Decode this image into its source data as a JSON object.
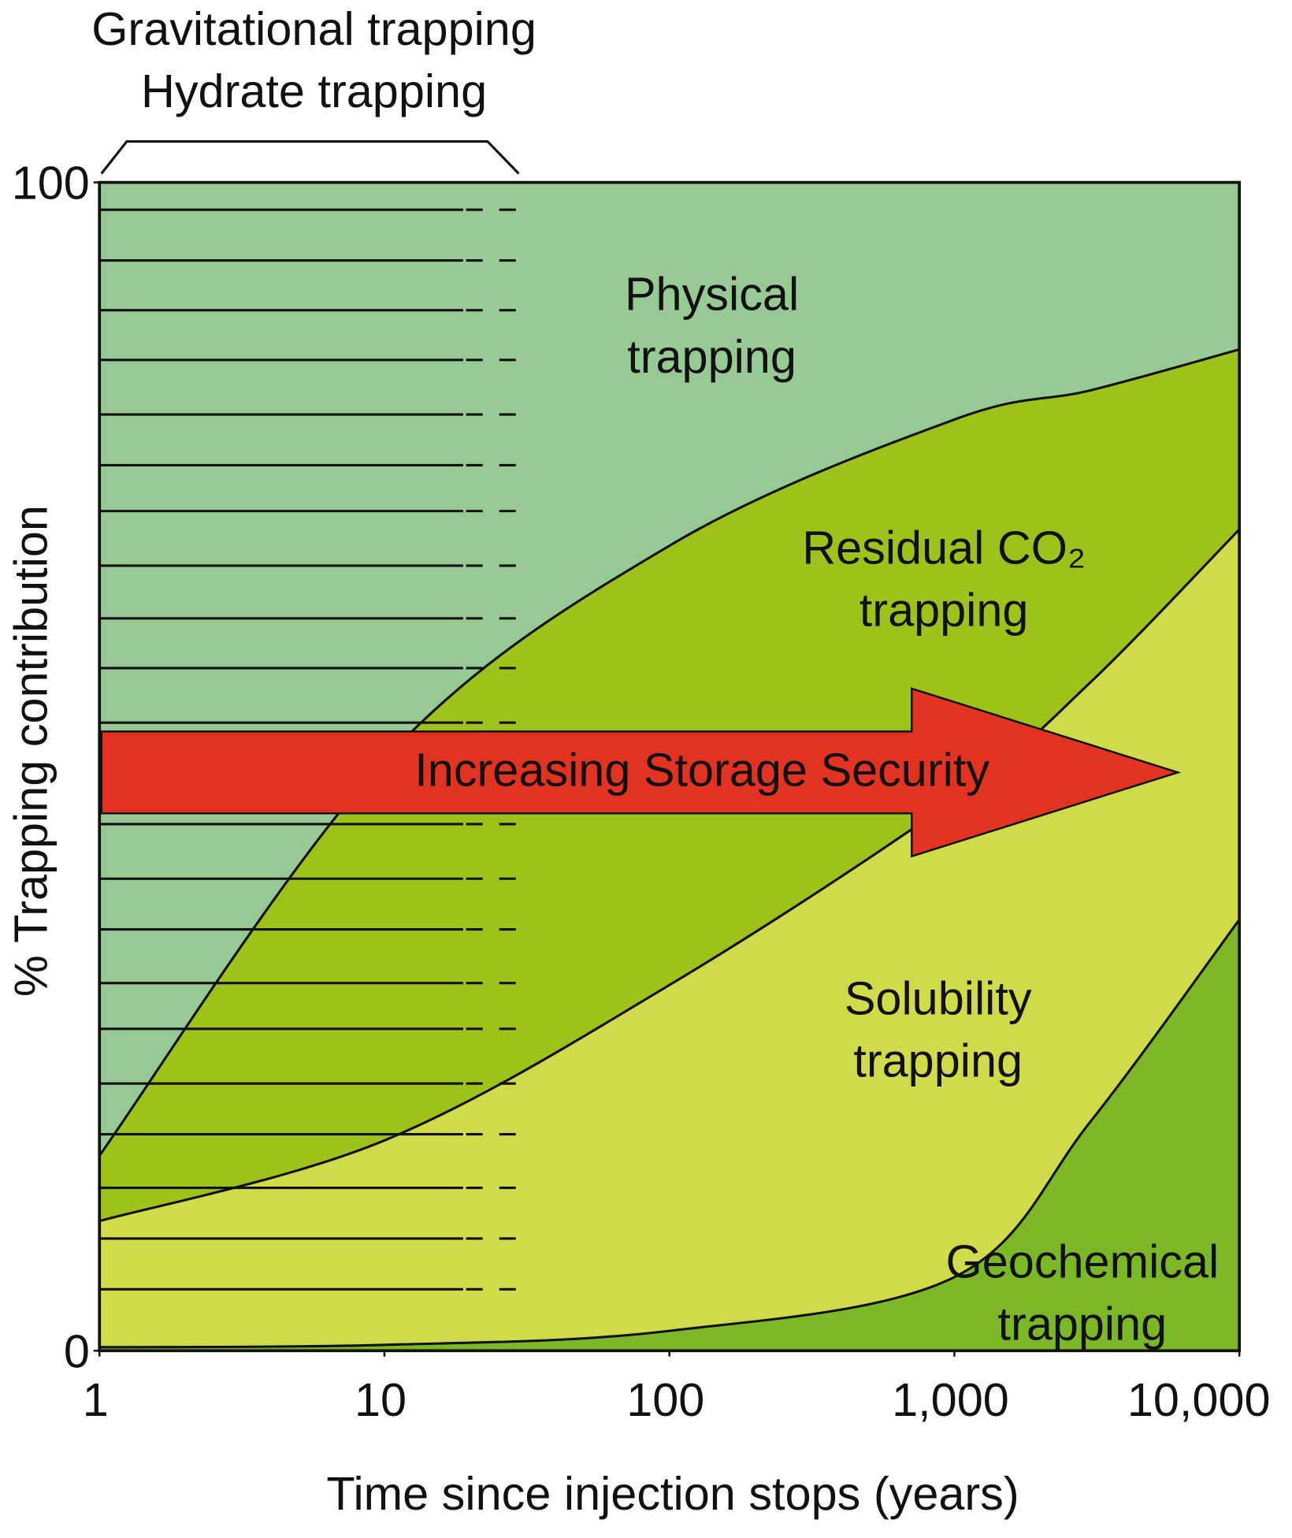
{
  "chart_data": {
    "type": "stacked_area",
    "x_label": "Time since injection stops (years)",
    "y_label": "% Trapping contribution",
    "x": [
      1,
      10,
      100,
      1000,
      3000,
      10000
    ],
    "log_x": true,
    "xlim": [
      1,
      10000
    ],
    "xticks": [
      1,
      10,
      100,
      {
        "value": 1000,
        "label": "1,000"
      },
      {
        "value": 10000,
        "label": "10,000"
      }
    ],
    "ylim": [
      0,
      100
    ],
    "yticks": [
      0,
      100
    ],
    "series": [
      {
        "name": "Geochemical trapping",
        "color": "#7cb726",
        "values": [
          0.3,
          0.5,
          1.7,
          6.3,
          19.6,
          36.9
        ]
      },
      {
        "name": "Solubility trapping",
        "color": "#d0db4a",
        "values": [
          10.8,
          17.5,
          29.6,
          40.9,
          37.6,
          33.4
        ]
      },
      {
        "name": "Residual CO₂ trapping",
        "color": "#9dc21a",
        "values": [
          5.6,
          32.6,
          37.6,
          32.5,
          25.0,
          15.4
        ]
      },
      {
        "name": "Physical trapping",
        "color": "#97c994",
        "values": [
          83.3,
          49.4,
          31.1,
          20.3,
          17.8,
          14.3
        ]
      }
    ],
    "annotations": [
      "Gravitational trapping",
      "Hydrate trapping",
      "Increasing Storage Security"
    ]
  }
}
